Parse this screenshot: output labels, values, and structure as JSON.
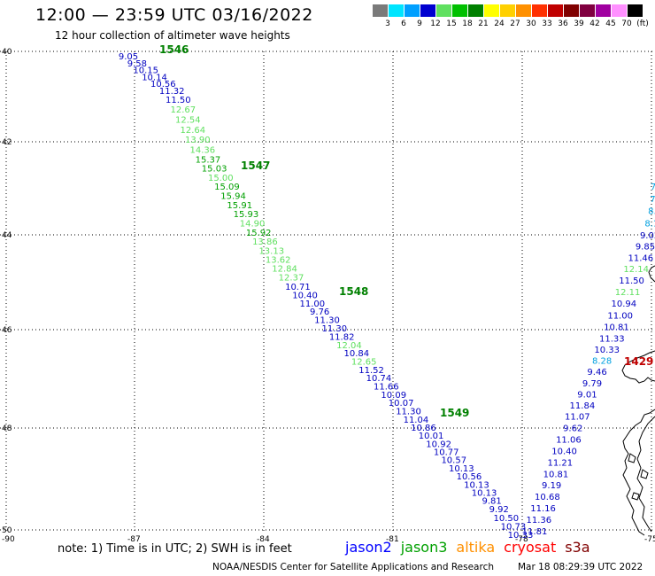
{
  "header": {
    "title": "12:00 — 23:59 UTC 03/16/2022",
    "subtitle": "12 hour collection of altimeter wave heights"
  },
  "color_scale": {
    "labels": [
      "3",
      "6",
      "9",
      "12",
      "15",
      "18",
      "21",
      "24",
      "27",
      "30",
      "33",
      "36",
      "39",
      "42",
      "45",
      "70",
      "(ft)"
    ],
    "colors": [
      "#7a7a7a",
      "#00e5ff",
      "#00a0ff",
      "#0000d0",
      "#60e060",
      "#00c000",
      "#008000",
      "#ffff00",
      "#ffd000",
      "#ff9000",
      "#ff3000",
      "#c00000",
      "#800000",
      "#800040",
      "#a000a0",
      "#ff90ff",
      "#000000"
    ]
  },
  "axes": {
    "lat_labels": [
      "40",
      "42",
      "44",
      "46",
      "48",
      "50"
    ],
    "lon_labels": [
      "-90",
      "-87",
      "-84",
      "-81",
      "-78",
      "-75"
    ]
  },
  "tracks": [
    {
      "id": "track-1",
      "points": [
        {
          "v": "9.05",
          "c": "#0000c0"
        },
        {
          "v": "9.58",
          "c": "#0000c0"
        },
        {
          "v": "10.15",
          "c": "#0000c0"
        },
        {
          "v": "10.14",
          "c": "#0000c0"
        },
        {
          "v": "10.56",
          "c": "#0000c0"
        },
        {
          "v": "11.32",
          "c": "#0000c0"
        },
        {
          "v": "11.50",
          "c": "#0000c0"
        },
        {
          "v": "12.67",
          "c": "#60e060"
        },
        {
          "v": "12.54",
          "c": "#60e060"
        },
        {
          "v": "12.64",
          "c": "#60e060"
        },
        {
          "v": "13.90",
          "c": "#60e060"
        },
        {
          "v": "14.36",
          "c": "#60e060"
        },
        {
          "v": "15.37",
          "c": "#00a000"
        },
        {
          "v": "15.03",
          "c": "#00a000"
        },
        {
          "v": "15.00",
          "c": "#60e060"
        },
        {
          "v": "15.09",
          "c": "#00a000"
        },
        {
          "v": "15.94",
          "c": "#00a000"
        },
        {
          "v": "15.91",
          "c": "#00a000"
        },
        {
          "v": "15.93",
          "c": "#00a000"
        },
        {
          "v": "14.90",
          "c": "#60e060"
        },
        {
          "v": "15.92",
          "c": "#00a000"
        },
        {
          "v": "13.86",
          "c": "#60e060"
        },
        {
          "v": "13.13",
          "c": "#60e060"
        },
        {
          "v": "13.62",
          "c": "#60e060"
        },
        {
          "v": "12.84",
          "c": "#60e060"
        },
        {
          "v": "12.37",
          "c": "#60e060"
        },
        {
          "v": "10.71",
          "c": "#0000c0"
        },
        {
          "v": "10.40",
          "c": "#0000c0"
        },
        {
          "v": "11.00",
          "c": "#0000c0"
        },
        {
          "v": "9.76",
          "c": "#0000c0"
        },
        {
          "v": "11.30",
          "c": "#0000c0"
        },
        {
          "v": "11.30",
          "c": "#0000c0"
        },
        {
          "v": "11.82",
          "c": "#0000c0"
        },
        {
          "v": "12.04",
          "c": "#60e060"
        },
        {
          "v": "10.84",
          "c": "#0000c0"
        },
        {
          "v": "12.65",
          "c": "#60e060"
        },
        {
          "v": "11.52",
          "c": "#0000c0"
        },
        {
          "v": "10.74",
          "c": "#0000c0"
        },
        {
          "v": "11.66",
          "c": "#0000c0"
        },
        {
          "v": "10.09",
          "c": "#0000c0"
        },
        {
          "v": "10.07",
          "c": "#0000c0"
        },
        {
          "v": "11.30",
          "c": "#0000c0"
        },
        {
          "v": "11.04",
          "c": "#0000c0"
        },
        {
          "v": "10.86",
          "c": "#0000c0"
        },
        {
          "v": "10.01",
          "c": "#0000c0"
        },
        {
          "v": "10.92",
          "c": "#0000c0"
        },
        {
          "v": "10.77",
          "c": "#0000c0"
        },
        {
          "v": "10.57",
          "c": "#0000c0"
        },
        {
          "v": "10.13",
          "c": "#0000c0"
        },
        {
          "v": "10.56",
          "c": "#0000c0"
        },
        {
          "v": "10.13",
          "c": "#0000c0"
        },
        {
          "v": "10.13",
          "c": "#0000c0"
        },
        {
          "v": "9.81",
          "c": "#0000c0"
        },
        {
          "v": "9.92",
          "c": "#0000c0"
        },
        {
          "v": "10.50",
          "c": "#0000c0"
        },
        {
          "v": "10.73",
          "c": "#0000c0"
        },
        {
          "v": "10.33",
          "c": "#0000c0"
        }
      ]
    },
    {
      "id": "track-2",
      "points": [
        {
          "v": "11.81",
          "c": "#0000c0"
        },
        {
          "v": "11.36",
          "c": "#0000c0"
        },
        {
          "v": "11.16",
          "c": "#0000c0"
        },
        {
          "v": "10.68",
          "c": "#0000c0"
        },
        {
          "v": "9.19",
          "c": "#0000c0"
        },
        {
          "v": "10.81",
          "c": "#0000c0"
        },
        {
          "v": "11.21",
          "c": "#0000c0"
        },
        {
          "v": "10.40",
          "c": "#0000c0"
        },
        {
          "v": "11.06",
          "c": "#0000c0"
        },
        {
          "v": "9.62",
          "c": "#0000c0"
        },
        {
          "v": "11.07",
          "c": "#0000c0"
        },
        {
          "v": "11.84",
          "c": "#0000c0"
        },
        {
          "v": "9.01",
          "c": "#0000c0"
        },
        {
          "v": "9.79",
          "c": "#0000c0"
        },
        {
          "v": "9.46",
          "c": "#0000c0"
        },
        {
          "v": "8.28",
          "c": "#00a0e0"
        },
        {
          "v": "10.33",
          "c": "#0000c0"
        },
        {
          "v": "11.33",
          "c": "#0000c0"
        },
        {
          "v": "10.81",
          "c": "#0000c0"
        },
        {
          "v": "11.00",
          "c": "#0000c0"
        },
        {
          "v": "10.94",
          "c": "#0000c0"
        },
        {
          "v": "12.11",
          "c": "#60e060"
        },
        {
          "v": "11.50",
          "c": "#0000c0"
        },
        {
          "v": "12.14",
          "c": "#60e060"
        },
        {
          "v": "11.46",
          "c": "#0000c0"
        },
        {
          "v": "9.85",
          "c": "#0000c0"
        },
        {
          "v": "9.02",
          "c": "#0000c0"
        },
        {
          "v": "8.1",
          "c": "#00a0e0"
        },
        {
          "v": "8.",
          "c": "#00a0e0"
        },
        {
          "v": "7",
          "c": "#00a0e0"
        },
        {
          "v": "7",
          "c": "#00a0e0"
        }
      ]
    }
  ],
  "time_markers": [
    {
      "label": "1546",
      "color": "#008000"
    },
    {
      "label": "1547",
      "color": "#008000"
    },
    {
      "label": "1548",
      "color": "#008000"
    },
    {
      "label": "1549",
      "color": "#008000"
    },
    {
      "label": "1429",
      "color": "#c00000"
    }
  ],
  "footer": {
    "note": "note: 1) Time is in UTC; 2) SWH is in feet",
    "missions": [
      {
        "name": "jason2",
        "color": "#0000ff"
      },
      {
        "name": "jason3",
        "color": "#00a000"
      },
      {
        "name": "altika",
        "color": "#ff9000"
      },
      {
        "name": "cryosat",
        "color": "#ff0000"
      },
      {
        "name": "s3a",
        "color": "#800000"
      }
    ],
    "credit": "NOAA/NESDIS Center for Satellite Applications and Research",
    "timestamp": "Mar 18 08:29:39 UTC 2022"
  }
}
